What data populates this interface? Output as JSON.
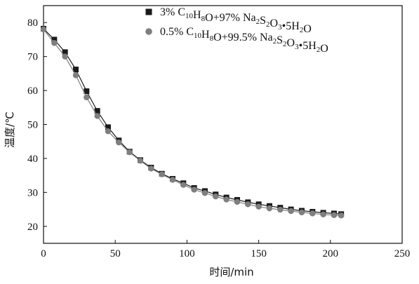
{
  "chart_data": {
    "type": "line",
    "xlabel": "时间/min",
    "ylabel": "温度/℃",
    "xlim": [
      0,
      250
    ],
    "ylim": [
      15,
      85
    ],
    "xticks": [
      0,
      50,
      100,
      150,
      200,
      250
    ],
    "yticks": [
      20,
      30,
      40,
      50,
      60,
      70,
      80
    ],
    "grid": false,
    "legend_position": "top-right",
    "series": [
      {
        "legend_parts": [
          {
            "t": "3% C"
          },
          {
            "t": "10",
            "s": "sub"
          },
          {
            "t": "H"
          },
          {
            "t": "8",
            "s": "sub"
          },
          {
            "t": "O+97% Na"
          },
          {
            "t": "2",
            "s": "sub"
          },
          {
            "t": "S"
          },
          {
            "t": "2",
            "s": "sub"
          },
          {
            "t": "O"
          },
          {
            "t": "3",
            "s": "sub"
          },
          {
            "t": "•5H"
          },
          {
            "t": "2",
            "s": "sub"
          },
          {
            "t": "O"
          }
        ],
        "marker": "square",
        "color": "#1a1a1a",
        "x": [
          0,
          7.5,
          15,
          22.5,
          30,
          37.5,
          45,
          52.5,
          60,
          67.5,
          75,
          82.5,
          90,
          97.5,
          105,
          112.5,
          120,
          127.5,
          135,
          142.5,
          150,
          157.5,
          165,
          172.5,
          180,
          187.5,
          195,
          202.5,
          207.5
        ],
        "y": [
          78.2,
          75.0,
          71.3,
          66.2,
          59.8,
          54.0,
          49.2,
          45.3,
          42.0,
          39.5,
          37.3,
          35.5,
          34.0,
          32.7,
          31.3,
          30.4,
          29.4,
          28.5,
          27.8,
          27.1,
          26.5,
          26.0,
          25.5,
          25.0,
          24.6,
          24.3,
          24.0,
          23.8,
          23.6
        ]
      },
      {
        "legend_parts": [
          {
            "t": "0.5% C"
          },
          {
            "t": "10",
            "s": "sub"
          },
          {
            "t": "H"
          },
          {
            "t": "8",
            "s": "sub"
          },
          {
            "t": "O+99.5% Na"
          },
          {
            "t": "2",
            "s": "sub"
          },
          {
            "t": "S"
          },
          {
            "t": "2",
            "s": "sub"
          },
          {
            "t": "O"
          },
          {
            "t": "3",
            "s": "sub"
          },
          {
            "t": "•5H"
          },
          {
            "t": "2",
            "s": "sub"
          },
          {
            "t": "O"
          }
        ],
        "marker": "circle",
        "color": "#7f7f7f",
        "x": [
          0,
          7.5,
          15,
          22.5,
          30,
          37.5,
          45,
          52.5,
          60,
          67.5,
          75,
          82.5,
          90,
          97.5,
          105,
          112.5,
          120,
          127.5,
          135,
          142.5,
          150,
          157.5,
          165,
          172.5,
          180,
          187.5,
          195,
          202.5,
          207.5
        ],
        "y": [
          78.0,
          74.0,
          70.0,
          64.5,
          58.0,
          52.5,
          48.0,
          44.7,
          41.8,
          39.3,
          37.0,
          35.3,
          33.7,
          32.2,
          30.8,
          29.8,
          28.8,
          27.9,
          27.2,
          26.5,
          25.8,
          25.3,
          24.9,
          24.5,
          24.1,
          23.8,
          23.5,
          23.3,
          23.2
        ]
      }
    ]
  }
}
